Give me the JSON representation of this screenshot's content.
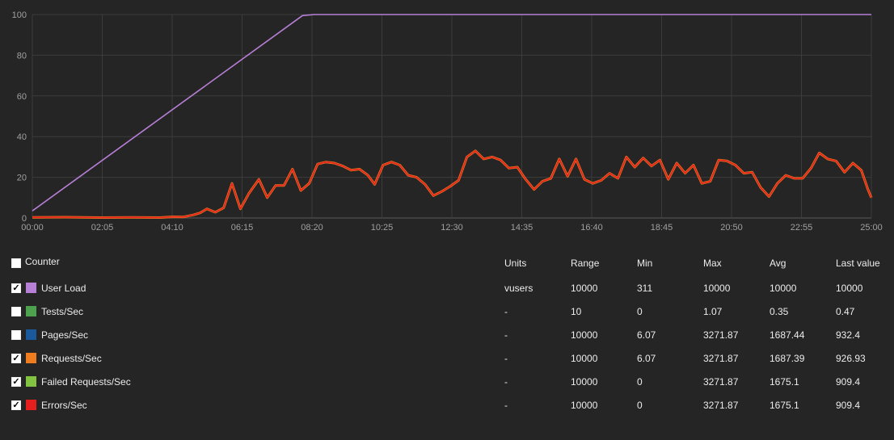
{
  "chart_data": {
    "type": "line",
    "x_ticks": [
      "00:00",
      "02:05",
      "04:10",
      "06:15",
      "08:20",
      "10:25",
      "12:30",
      "14:35",
      "16:40",
      "18:45",
      "20:50",
      "22:55",
      "25:00"
    ],
    "x_range_minutes": [
      0,
      25
    ],
    "y_ticks": [
      "0",
      "20",
      "40",
      "60",
      "80",
      "100"
    ],
    "ylim": [
      0,
      100
    ],
    "grid": true,
    "series": [
      {
        "name": "User Load",
        "color": "#b77fd6",
        "points": [
          [
            0,
            3.5
          ],
          [
            8.05,
            99.5
          ],
          [
            8.4,
            100
          ],
          [
            25,
            100
          ]
        ]
      },
      {
        "name": "Errors/Sec",
        "color": "#e51e1e",
        "points": [
          [
            0,
            0.3
          ],
          [
            1.0,
            0.4
          ],
          [
            2.0,
            0.2
          ],
          [
            3.0,
            0.3
          ],
          [
            3.8,
            0.2
          ],
          [
            4.2,
            0.6
          ],
          [
            4.5,
            0.5
          ],
          [
            4.8,
            1.5
          ],
          [
            5.0,
            2.5
          ],
          [
            5.2,
            4.5
          ],
          [
            5.45,
            2.8
          ],
          [
            5.7,
            5
          ],
          [
            5.95,
            17
          ],
          [
            6.2,
            4.5
          ],
          [
            6.45,
            12
          ],
          [
            6.75,
            19
          ],
          [
            7.0,
            10
          ],
          [
            7.25,
            16
          ],
          [
            7.5,
            16
          ],
          [
            7.75,
            24
          ],
          [
            8.0,
            13.5
          ],
          [
            8.25,
            17
          ],
          [
            8.5,
            26.5
          ],
          [
            8.75,
            27.5
          ],
          [
            9.0,
            27
          ],
          [
            9.25,
            25.5
          ],
          [
            9.5,
            23.5
          ],
          [
            9.75,
            24
          ],
          [
            10.0,
            21
          ],
          [
            10.2,
            16.5
          ],
          [
            10.45,
            26
          ],
          [
            10.7,
            27.5
          ],
          [
            10.95,
            26
          ],
          [
            11.2,
            21
          ],
          [
            11.45,
            20
          ],
          [
            11.7,
            16.5
          ],
          [
            11.95,
            11
          ],
          [
            12.2,
            13
          ],
          [
            12.45,
            15.5
          ],
          [
            12.7,
            18.5
          ],
          [
            12.95,
            30
          ],
          [
            13.2,
            33
          ],
          [
            13.45,
            29
          ],
          [
            13.7,
            30
          ],
          [
            13.95,
            28.5
          ],
          [
            14.2,
            24.5
          ],
          [
            14.45,
            25
          ],
          [
            14.7,
            19
          ],
          [
            14.95,
            14
          ],
          [
            15.2,
            18
          ],
          [
            15.45,
            19.5
          ],
          [
            15.7,
            29
          ],
          [
            15.95,
            20.5
          ],
          [
            16.2,
            29
          ],
          [
            16.45,
            19
          ],
          [
            16.7,
            17
          ],
          [
            16.95,
            18.5
          ],
          [
            17.2,
            22
          ],
          [
            17.45,
            19.5
          ],
          [
            17.7,
            30
          ],
          [
            17.95,
            25
          ],
          [
            18.2,
            29.5
          ],
          [
            18.45,
            25.5
          ],
          [
            18.7,
            28.5
          ],
          [
            18.95,
            19
          ],
          [
            19.2,
            27
          ],
          [
            19.45,
            22
          ],
          [
            19.7,
            26
          ],
          [
            19.95,
            17
          ],
          [
            20.2,
            18
          ],
          [
            20.45,
            28.5
          ],
          [
            20.7,
            28
          ],
          [
            20.95,
            26
          ],
          [
            21.2,
            22
          ],
          [
            21.45,
            22.5
          ],
          [
            21.7,
            15
          ],
          [
            21.95,
            10.5
          ],
          [
            22.2,
            17
          ],
          [
            22.45,
            21
          ],
          [
            22.7,
            19.5
          ],
          [
            22.95,
            19.5
          ],
          [
            23.2,
            24.5
          ],
          [
            23.45,
            32
          ],
          [
            23.7,
            29
          ],
          [
            23.95,
            28
          ],
          [
            24.2,
            22.5
          ],
          [
            24.45,
            27
          ],
          [
            24.7,
            23.5
          ],
          [
            24.9,
            14
          ],
          [
            25.0,
            10
          ]
        ]
      }
    ]
  },
  "legend": {
    "headers": {
      "counter": "Counter",
      "units": "Units",
      "range": "Range",
      "min": "Min",
      "max": "Max",
      "avg": "Avg",
      "last": "Last value"
    },
    "header_checked": false,
    "rows": [
      {
        "name": "User Load",
        "checked": true,
        "color": "#b77fd6",
        "units": "vusers",
        "range": "10000",
        "min": "311",
        "max": "10000",
        "avg": "10000",
        "last": "10000"
      },
      {
        "name": "Tests/Sec",
        "checked": false,
        "color": "#4ea24e",
        "units": "-",
        "range": "10",
        "min": "0",
        "max": "1.07",
        "avg": "0.35",
        "last": "0.47"
      },
      {
        "name": "Pages/Sec",
        "checked": false,
        "color": "#1a5a9c",
        "units": "-",
        "range": "10000",
        "min": "6.07",
        "max": "3271.87",
        "avg": "1687.44",
        "last": "932.4"
      },
      {
        "name": "Requests/Sec",
        "checked": true,
        "color": "#ef7c1e",
        "units": "-",
        "range": "10000",
        "min": "6.07",
        "max": "3271.87",
        "avg": "1687.39",
        "last": "926.93"
      },
      {
        "name": "Failed Requests/Sec",
        "checked": true,
        "color": "#82c341",
        "units": "-",
        "range": "10000",
        "min": "0",
        "max": "3271.87",
        "avg": "1675.1",
        "last": "909.4"
      },
      {
        "name": "Errors/Sec",
        "checked": true,
        "color": "#e51e1e",
        "units": "-",
        "range": "10000",
        "min": "0",
        "max": "3271.87",
        "avg": "1675.1",
        "last": "909.4"
      }
    ]
  }
}
